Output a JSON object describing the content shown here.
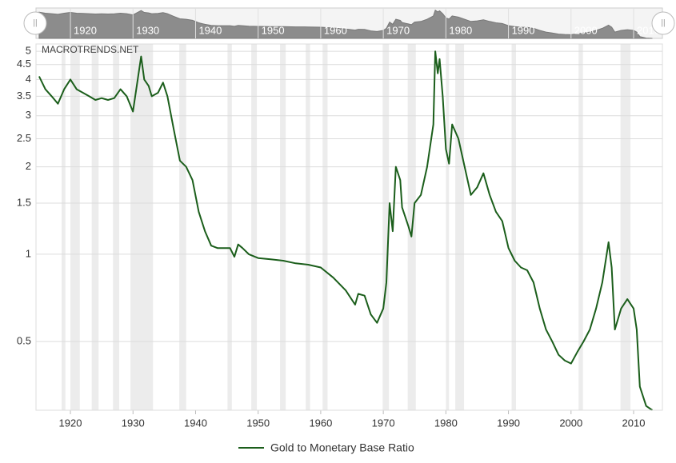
{
  "chart_data": {
    "type": "line",
    "source": "MACROTRENDS.NET",
    "log_y": true,
    "grid": true,
    "legend": "bottom",
    "x": [
      1915,
      1916,
      1917,
      1918,
      1919,
      1920,
      1921,
      1922,
      1923,
      1924,
      1925,
      1926,
      1927,
      1928,
      1929,
      1930,
      1931.3,
      1931.8,
      1932.5,
      1933,
      1934,
      1934.8,
      1935.5,
      1936.5,
      1937.5,
      1938.5,
      1939.5,
      1940.5,
      1941.5,
      1942.5,
      1943.5,
      1944.5,
      1945.5,
      1946.2,
      1946.8,
      1947.5,
      1948.5,
      1950,
      1952,
      1954,
      1956,
      1958,
      1960,
      1962,
      1964,
      1965.5,
      1966,
      1967,
      1968,
      1969,
      1970,
      1970.5,
      1971,
      1971.5,
      1972,
      1972.7,
      1973,
      1974,
      1974.5,
      1975,
      1976,
      1977,
      1978,
      1978.3,
      1978.7,
      1979,
      1979.5,
      1980,
      1980.5,
      1981,
      1982,
      1983,
      1984,
      1985,
      1986,
      1987,
      1988,
      1989,
      1990,
      1991,
      1992,
      1993,
      1994,
      1995,
      1996,
      1997,
      1998,
      1999,
      2000,
      2001,
      2002,
      2003,
      2004,
      2005,
      2006,
      2006.5,
      2007,
      2008,
      2009,
      2010,
      2010.5,
      2011,
      2012,
      2013
    ],
    "series": [
      {
        "name": "Gold to Monetary Base Ratio",
        "color": "#1b5e1b",
        "values": [
          4.1,
          3.7,
          3.5,
          3.3,
          3.7,
          4.0,
          3.7,
          3.6,
          3.5,
          3.4,
          3.45,
          3.4,
          3.45,
          3.7,
          3.5,
          3.1,
          4.8,
          4.0,
          3.8,
          3.5,
          3.6,
          3.9,
          3.5,
          2.7,
          2.1,
          2.0,
          1.8,
          1.4,
          1.2,
          1.07,
          1.05,
          1.05,
          1.05,
          0.98,
          1.08,
          1.05,
          1.0,
          0.97,
          0.96,
          0.95,
          0.93,
          0.92,
          0.9,
          0.83,
          0.75,
          0.67,
          0.73,
          0.72,
          0.62,
          0.58,
          0.65,
          0.8,
          1.5,
          1.2,
          2.0,
          1.8,
          1.45,
          1.25,
          1.15,
          1.5,
          1.6,
          2.0,
          2.8,
          5.0,
          4.2,
          4.7,
          3.5,
          2.3,
          2.05,
          2.8,
          2.5,
          2.0,
          1.6,
          1.7,
          1.9,
          1.6,
          1.4,
          1.3,
          1.05,
          0.95,
          0.9,
          0.88,
          0.8,
          0.65,
          0.55,
          0.5,
          0.45,
          0.43,
          0.42,
          0.46,
          0.5,
          0.55,
          0.65,
          0.8,
          1.1,
          0.9,
          0.55,
          0.65,
          0.7,
          0.65,
          0.55,
          0.35,
          0.3,
          0.29
        ]
      }
    ],
    "shaded_ranges": [
      [
        1918.6,
        1919.2
      ],
      [
        1920,
        1921.5
      ],
      [
        1923.4,
        1924.5
      ],
      [
        1926.8,
        1927.8
      ],
      [
        1929.6,
        1933.2
      ],
      [
        1937.4,
        1938.5
      ],
      [
        1945.1,
        1945.8
      ],
      [
        1948.9,
        1949.8
      ],
      [
        1953.5,
        1954.4
      ],
      [
        1957.6,
        1958.3
      ],
      [
        1960.3,
        1961.1
      ],
      [
        1969.9,
        1970.9
      ],
      [
        1973.9,
        1975.2
      ],
      [
        1980,
        1980.5
      ],
      [
        1981.5,
        1982.9
      ],
      [
        1990.5,
        1991.2
      ],
      [
        2001.2,
        2001.9
      ],
      [
        2007.9,
        2009.5
      ]
    ],
    "xlim": [
      1914.5,
      2014.6
    ],
    "xticks": [
      1920,
      1930,
      1940,
      1950,
      1960,
      1970,
      1980,
      1990,
      2000,
      2010
    ],
    "ylim": [
      0.29,
      5.3
    ],
    "yticks": [
      0.5,
      1,
      1.5,
      2,
      2.5,
      3,
      3.5,
      4,
      4.5,
      5
    ]
  }
}
